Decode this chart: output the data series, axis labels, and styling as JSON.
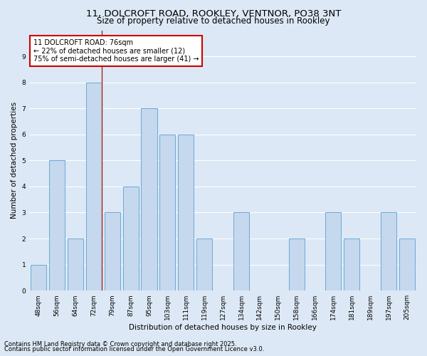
{
  "title1": "11, DOLCROFT ROAD, ROOKLEY, VENTNOR, PO38 3NT",
  "title2": "Size of property relative to detached houses in Rookley",
  "xlabel": "Distribution of detached houses by size in Rookley",
  "ylabel": "Number of detached properties",
  "categories": [
    "48sqm",
    "56sqm",
    "64sqm",
    "72sqm",
    "79sqm",
    "87sqm",
    "95sqm",
    "103sqm",
    "111sqm",
    "119sqm",
    "127sqm",
    "134sqm",
    "142sqm",
    "150sqm",
    "158sqm",
    "166sqm",
    "174sqm",
    "181sqm",
    "189sqm",
    "197sqm",
    "205sqm"
  ],
  "values": [
    1,
    5,
    2,
    8,
    3,
    4,
    7,
    6,
    6,
    2,
    0,
    3,
    0,
    0,
    2,
    0,
    3,
    2,
    0,
    3,
    2
  ],
  "bar_color": "#c5d8ee",
  "bar_edge_color": "#6aaad4",
  "highlight_bar_index": 3,
  "highlight_line_color": "#aa2222",
  "annotation_text": "11 DOLCROFT ROAD: 76sqm\n← 22% of detached houses are smaller (12)\n75% of semi-detached houses are larger (41) →",
  "annotation_box_edge_color": "#cc0000",
  "annotation_box_face_color": "#ffffff",
  "ylim": [
    0,
    10
  ],
  "yticks": [
    0,
    1,
    2,
    3,
    4,
    5,
    6,
    7,
    8,
    9,
    10
  ],
  "footer_line1": "Contains HM Land Registry data © Crown copyright and database right 2025.",
  "footer_line2": "Contains public sector information licensed under the Open Government Licence v3.0.",
  "background_color": "#dce8f5",
  "plot_bg_color": "#dce8f5",
  "grid_color": "#ffffff",
  "title_fontsize": 9.5,
  "subtitle_fontsize": 8.5,
  "axis_label_fontsize": 7.5,
  "tick_fontsize": 6.5,
  "annotation_fontsize": 7,
  "footer_fontsize": 6
}
